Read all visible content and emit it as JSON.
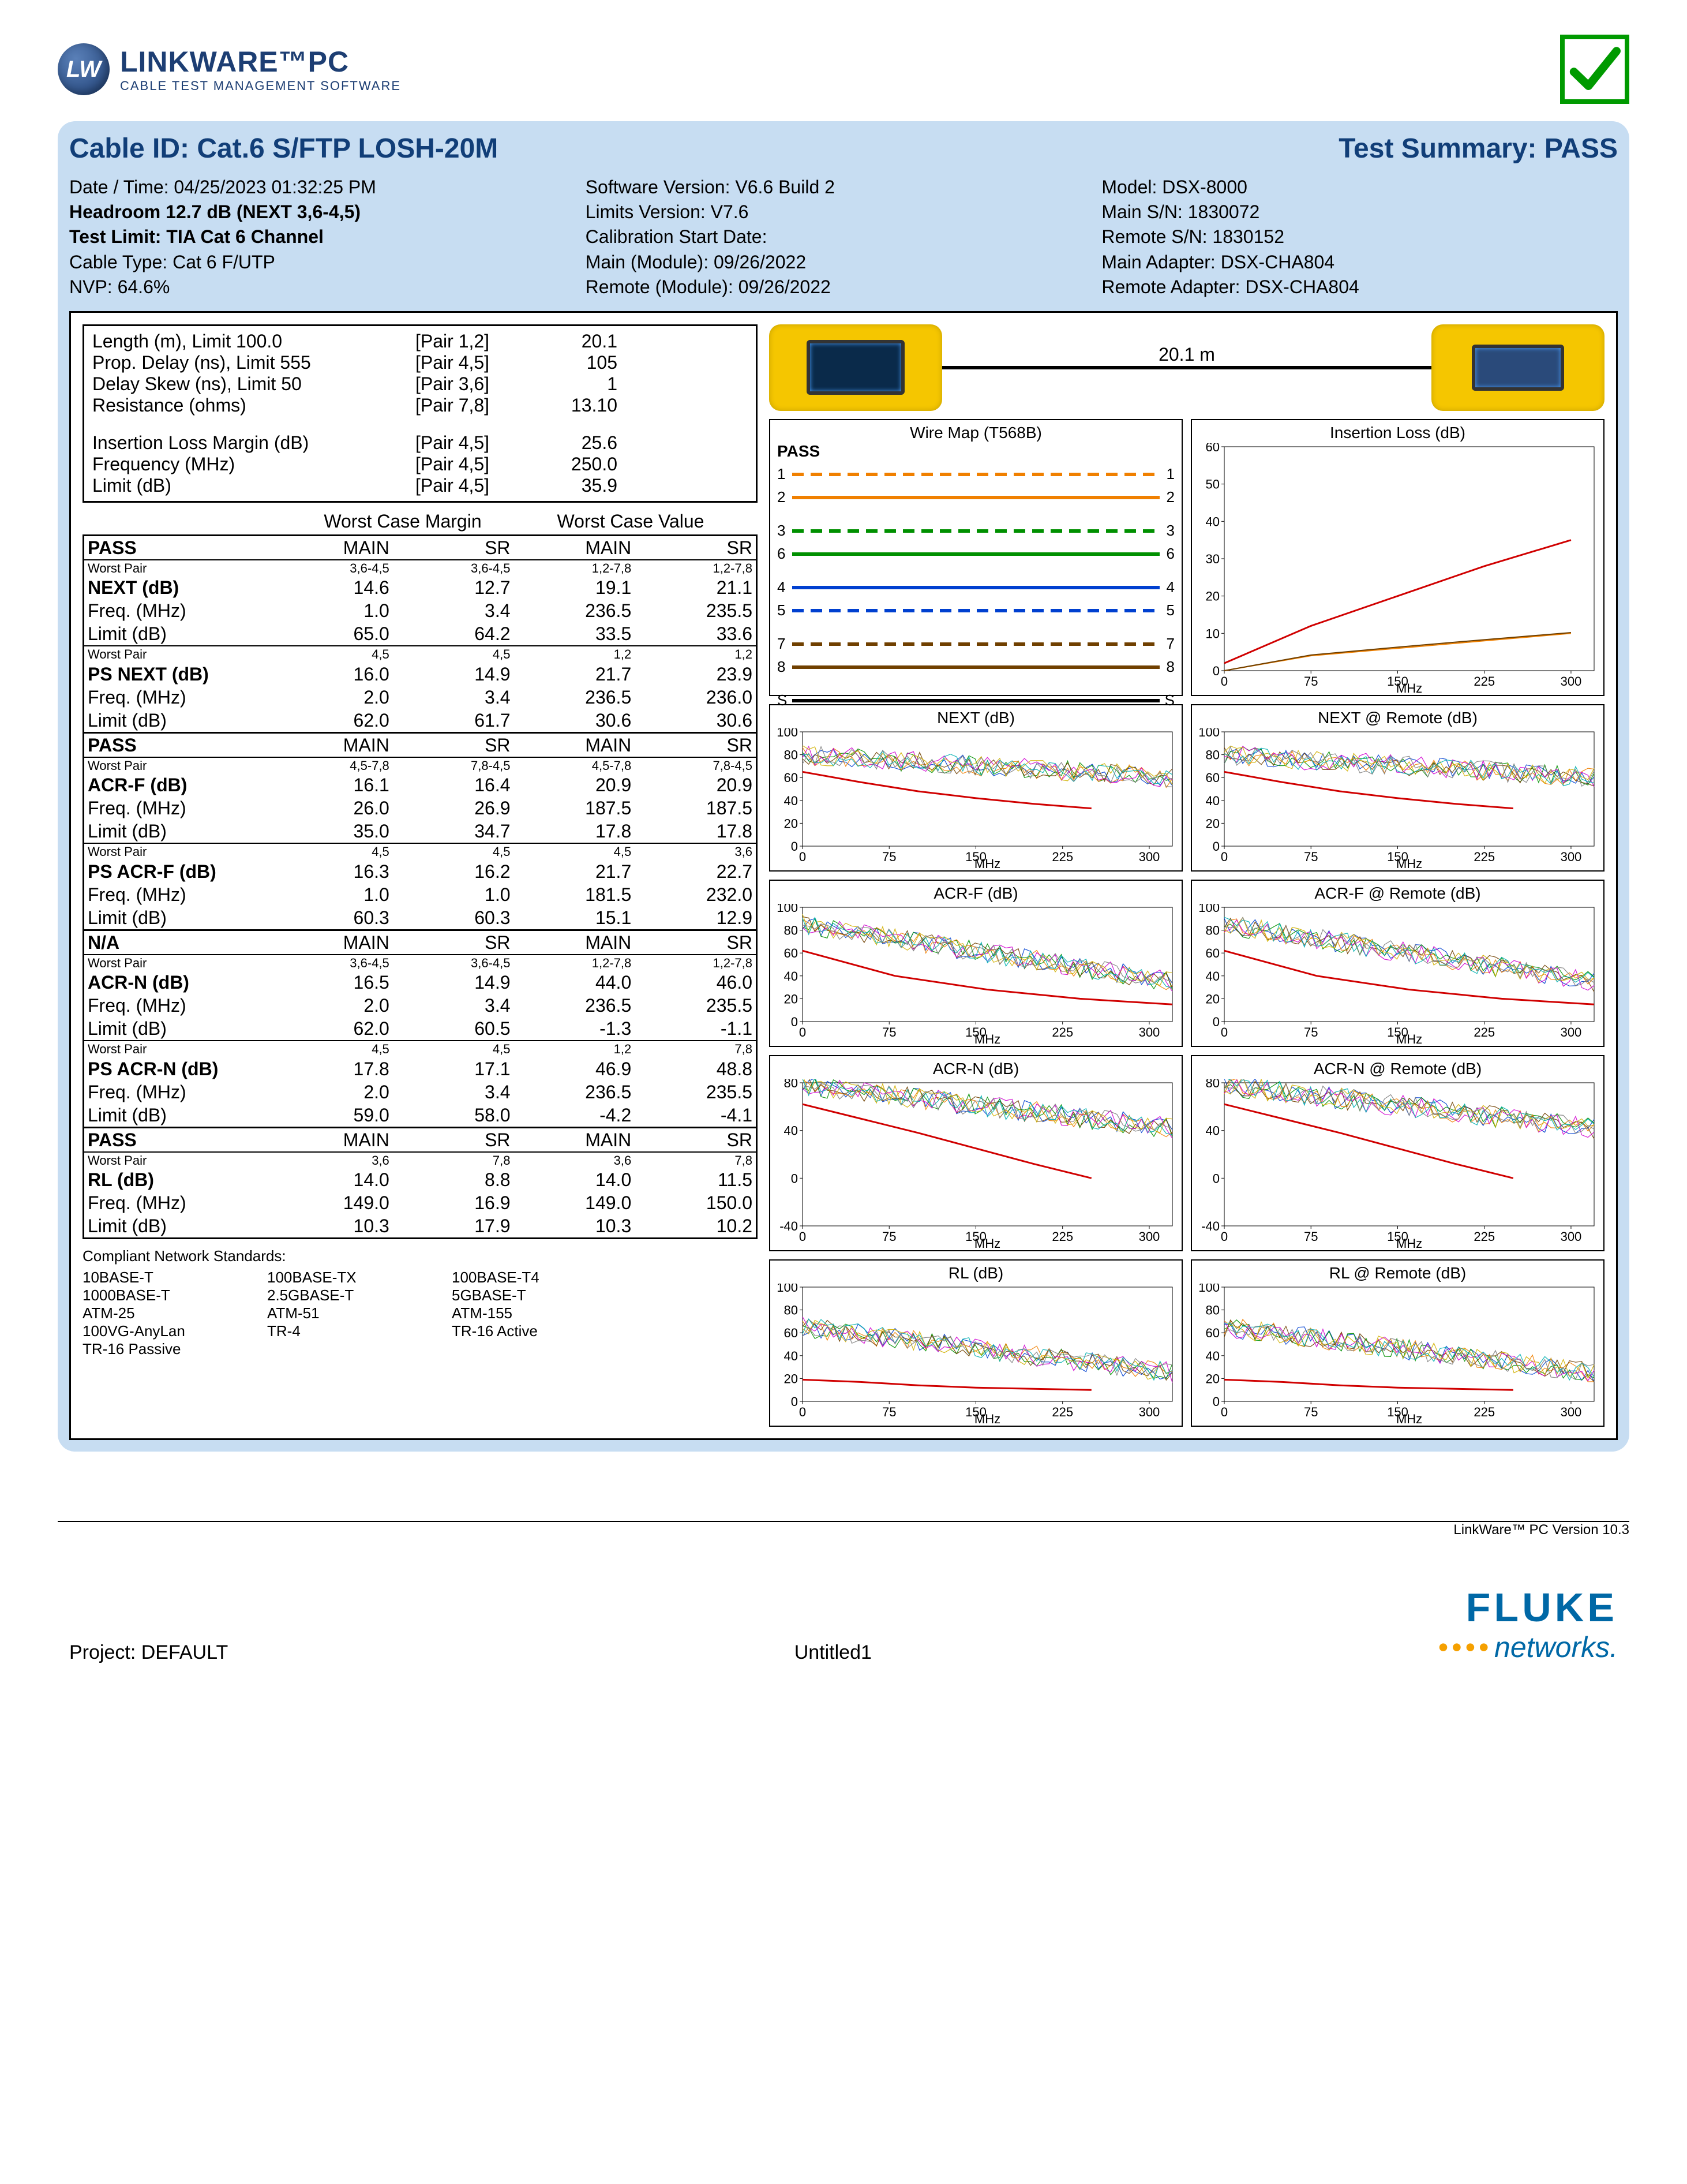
{
  "logo": {
    "badge": "LW",
    "title": "LINKWARE™PC",
    "subtitle": "CABLE TEST MANAGEMENT SOFTWARE"
  },
  "pass_checkmark_color": "#009a00",
  "header": {
    "cable_id": "Cable ID: Cat.6 S/FTP LOSH-20M",
    "summary": "Test Summary: PASS"
  },
  "meta": {
    "col1": [
      {
        "t": "Date / Time: 04/25/2023  01:32:25 PM",
        "b": false
      },
      {
        "t": "Headroom 12.7 dB (NEXT 3,6-4,5)",
        "b": true
      },
      {
        "t": "Test Limit: TIA Cat 6 Channel",
        "b": true
      },
      {
        "t": "Cable Type: Cat 6 F/UTP",
        "b": false
      },
      {
        "t": "NVP: 64.6%",
        "b": false
      }
    ],
    "col2": [
      {
        "t": "Software Version: V6.6 Build 2",
        "b": false
      },
      {
        "t": "Limits Version: V7.6",
        "b": false
      },
      {
        "t": "Calibration Start Date:",
        "b": false
      },
      {
        "t": "Main (Module): 09/26/2022",
        "b": false
      },
      {
        "t": "Remote (Module): 09/26/2022",
        "b": false
      }
    ],
    "col3": [
      {
        "t": "Model: DSX-8000",
        "b": false
      },
      {
        "t": "Main S/N: 1830072",
        "b": false
      },
      {
        "t": "Remote S/N: 1830152",
        "b": false
      },
      {
        "t": "Main Adapter: DSX-CHA804",
        "b": false
      },
      {
        "t": "Remote Adapter: DSX-CHA804",
        "b": false
      }
    ]
  },
  "summary_table": {
    "top": [
      {
        "l": "Length (m), Limit 100.0",
        "p": "[Pair 1,2]",
        "v": "20.1"
      },
      {
        "l": "Prop. Delay (ns), Limit 555",
        "p": "[Pair 4,5]",
        "v": "105"
      },
      {
        "l": "Delay Skew (ns), Limit 50",
        "p": "[Pair 3,6]",
        "v": "1"
      },
      {
        "l": "Resistance (ohms)",
        "p": "[Pair 7,8]",
        "v": "13.10"
      }
    ],
    "bot": [
      {
        "l": "Insertion Loss Margin (dB)",
        "p": "[Pair 4,5]",
        "v": "25.6"
      },
      {
        "l": "Frequency (MHz)",
        "p": "[Pair 4,5]",
        "v": "250.0"
      },
      {
        "l": "Limit (dB)",
        "p": "[Pair 4,5]",
        "v": "35.9"
      }
    ]
  },
  "wc_headers": {
    "margin": "Worst Case Margin",
    "value": "Worst Case Value"
  },
  "col_headers": {
    "main": "MAIN",
    "sr": "SR"
  },
  "blocks": [
    {
      "status": "PASS",
      "groups": [
        {
          "wp": [
            "3,6-4,5",
            "3,6-4,5",
            "1,2-7,8",
            "1,2-7,8"
          ],
          "name": "NEXT (dB)",
          "v": [
            "14.6",
            "12.7",
            "19.1",
            "21.1"
          ],
          "freq": [
            "1.0",
            "3.4",
            "236.5",
            "235.5"
          ],
          "lim": [
            "65.0",
            "64.2",
            "33.5",
            "33.6"
          ]
        },
        {
          "wp": [
            "4,5",
            "4,5",
            "1,2",
            "1,2"
          ],
          "name": "PS NEXT (dB)",
          "v": [
            "16.0",
            "14.9",
            "21.7",
            "23.9"
          ],
          "freq": [
            "2.0",
            "3.4",
            "236.5",
            "236.0"
          ],
          "lim": [
            "62.0",
            "61.7",
            "30.6",
            "30.6"
          ]
        }
      ]
    },
    {
      "status": "PASS",
      "groups": [
        {
          "wp": [
            "4,5-7,8",
            "7,8-4,5",
            "4,5-7,8",
            "7,8-4,5"
          ],
          "name": "ACR-F (dB)",
          "v": [
            "16.1",
            "16.4",
            "20.9",
            "20.9"
          ],
          "freq": [
            "26.0",
            "26.9",
            "187.5",
            "187.5"
          ],
          "lim": [
            "35.0",
            "34.7",
            "17.8",
            "17.8"
          ]
        },
        {
          "wp": [
            "4,5",
            "4,5",
            "4,5",
            "3,6"
          ],
          "name": "PS ACR-F (dB)",
          "v": [
            "16.3",
            "16.2",
            "21.7",
            "22.7"
          ],
          "freq": [
            "1.0",
            "1.0",
            "181.5",
            "232.0"
          ],
          "lim": [
            "60.3",
            "60.3",
            "15.1",
            "12.9"
          ]
        }
      ]
    },
    {
      "status": "N/A",
      "groups": [
        {
          "wp": [
            "3,6-4,5",
            "3,6-4,5",
            "1,2-7,8",
            "1,2-7,8"
          ],
          "name": "ACR-N (dB)",
          "v": [
            "16.5",
            "14.9",
            "44.0",
            "46.0"
          ],
          "freq": [
            "2.0",
            "3.4",
            "236.5",
            "235.5"
          ],
          "lim": [
            "62.0",
            "60.5",
            "-1.3",
            "-1.1"
          ]
        },
        {
          "wp": [
            "4,5",
            "4,5",
            "1,2",
            "7,8"
          ],
          "name": "PS ACR-N (dB)",
          "v": [
            "17.8",
            "17.1",
            "46.9",
            "48.8"
          ],
          "freq": [
            "2.0",
            "3.4",
            "236.5",
            "235.5"
          ],
          "lim": [
            "59.0",
            "58.0",
            "-4.2",
            "-4.1"
          ]
        }
      ]
    },
    {
      "status": "PASS",
      "groups": [
        {
          "wp": [
            "3,6",
            "7,8",
            "3,6",
            "7,8"
          ],
          "name": "RL (dB)",
          "v": [
            "14.0",
            "8.8",
            "14.0",
            "11.5"
          ],
          "freq": [
            "149.0",
            "16.9",
            "149.0",
            "150.0"
          ],
          "lim": [
            "10.3",
            "17.9",
            "10.3",
            "10.2"
          ]
        }
      ]
    }
  ],
  "labels": {
    "worst_pair": "Worst Pair",
    "freq": "Freq. (MHz)",
    "limit": "Limit (dB)"
  },
  "compliant": {
    "title": "Compliant Network Standards:",
    "items": [
      "10BASE-T",
      "100BASE-TX",
      "100BASE-T4",
      "1000BASE-T",
      "2.5GBASE-T",
      "5GBASE-T",
      "ATM-25",
      "ATM-51",
      "ATM-155",
      "100VG-AnyLan",
      "TR-4",
      "TR-16 Active",
      "TR-16 Passive"
    ]
  },
  "cable_length": "20.1 m",
  "wiremap": {
    "title": "Wire Map (T568B)",
    "pass": "PASS",
    "pairs": [
      {
        "n": "1",
        "c": "#f08000",
        "dash": true
      },
      {
        "n": "2",
        "c": "#f08000",
        "dash": false
      },
      {
        "n": "3",
        "c": "#009000",
        "dash": true
      },
      {
        "n": "6",
        "c": "#009000",
        "dash": false
      },
      {
        "n": "4",
        "c": "#0040d0",
        "dash": false
      },
      {
        "n": "5",
        "c": "#0040d0",
        "dash": true
      },
      {
        "n": "7",
        "c": "#704000",
        "dash": true
      },
      {
        "n": "8",
        "c": "#704000",
        "dash": false
      },
      {
        "n": "S",
        "c": "#000000",
        "dash": false
      }
    ]
  },
  "charts": {
    "insertion_loss": {
      "title": "Insertion Loss (dB)",
      "ymin": 0,
      "ymax": 60,
      "yticks": [
        0,
        10,
        20,
        30,
        40,
        50,
        60
      ],
      "xticks": [
        0,
        75,
        150,
        225,
        300
      ],
      "xlabel": "MHz",
      "limit": {
        "color": "#d00000",
        "pts": [
          [
            0,
            2
          ],
          [
            75,
            12
          ],
          [
            150,
            20
          ],
          [
            225,
            28
          ],
          [
            300,
            35
          ]
        ]
      },
      "series": [
        {
          "color": "#f08000",
          "pts": [
            [
              0,
              0
            ],
            [
              75,
              4
            ],
            [
              150,
              6
            ],
            [
              225,
              8
            ],
            [
              300,
              10
            ]
          ]
        },
        {
          "color": "#704000",
          "pts": [
            [
              0,
              0
            ],
            [
              75,
              4.2
            ],
            [
              150,
              6.3
            ],
            [
              225,
              8.3
            ],
            [
              300,
              10.2
            ]
          ]
        }
      ]
    },
    "rows": [
      {
        "l": {
          "title": "NEXT (dB)"
        },
        "r": {
          "title": "NEXT @ Remote (dB)"
        },
        "ymin": 0,
        "ymax": 100,
        "yticks": [
          0,
          20,
          40,
          60,
          80,
          100
        ],
        "limit_end": 250,
        "limit": [
          [
            0,
            65
          ],
          [
            50,
            56
          ],
          [
            100,
            48
          ],
          [
            150,
            42
          ],
          [
            200,
            37
          ],
          [
            250,
            33
          ]
        ],
        "band": [
          80,
          60
        ]
      },
      {
        "l": {
          "title": "ACR-F (dB)"
        },
        "r": {
          "title": "ACR-F @ Remote (dB)"
        },
        "ymin": 0,
        "ymax": 100,
        "yticks": [
          0,
          20,
          40,
          60,
          80,
          100
        ],
        "limit_end": 320,
        "limit": [
          [
            0,
            62
          ],
          [
            80,
            40
          ],
          [
            160,
            28
          ],
          [
            240,
            20
          ],
          [
            320,
            15
          ]
        ],
        "band": [
          85,
          35
        ]
      },
      {
        "l": {
          "title": "ACR-N (dB)"
        },
        "r": {
          "title": "ACR-N @ Remote (dB)"
        },
        "ymin": -40,
        "ymax": 80,
        "yticks": [
          -40,
          0,
          40,
          80
        ],
        "limit_end": 250,
        "limit": [
          [
            0,
            62
          ],
          [
            50,
            50
          ],
          [
            100,
            38
          ],
          [
            150,
            25
          ],
          [
            200,
            12
          ],
          [
            250,
            0
          ]
        ],
        "band": [
          78,
          42
        ]
      },
      {
        "l": {
          "title": "RL (dB)"
        },
        "r": {
          "title": "RL @ Remote (dB)"
        },
        "ymin": 0,
        "ymax": 100,
        "yticks": [
          0,
          20,
          40,
          60,
          80,
          100
        ],
        "limit_end": 250,
        "limit": [
          [
            0,
            19
          ],
          [
            50,
            17
          ],
          [
            100,
            14
          ],
          [
            150,
            12
          ],
          [
            200,
            11
          ],
          [
            250,
            10
          ]
        ],
        "band": [
          65,
          25
        ]
      }
    ],
    "noise_colors": [
      "#0040d0",
      "#009000",
      "#f08000",
      "#704000",
      "#d000d0",
      "#d0b000",
      "#00b0b0",
      "#808080"
    ]
  },
  "version_line": "LinkWare™ PC Version 10.3",
  "footer": {
    "project": "Project: DEFAULT",
    "file": "Untitled1",
    "brand1": "FLUKE",
    "brand2": "networks.",
    "brand_color": "#0068a6"
  }
}
